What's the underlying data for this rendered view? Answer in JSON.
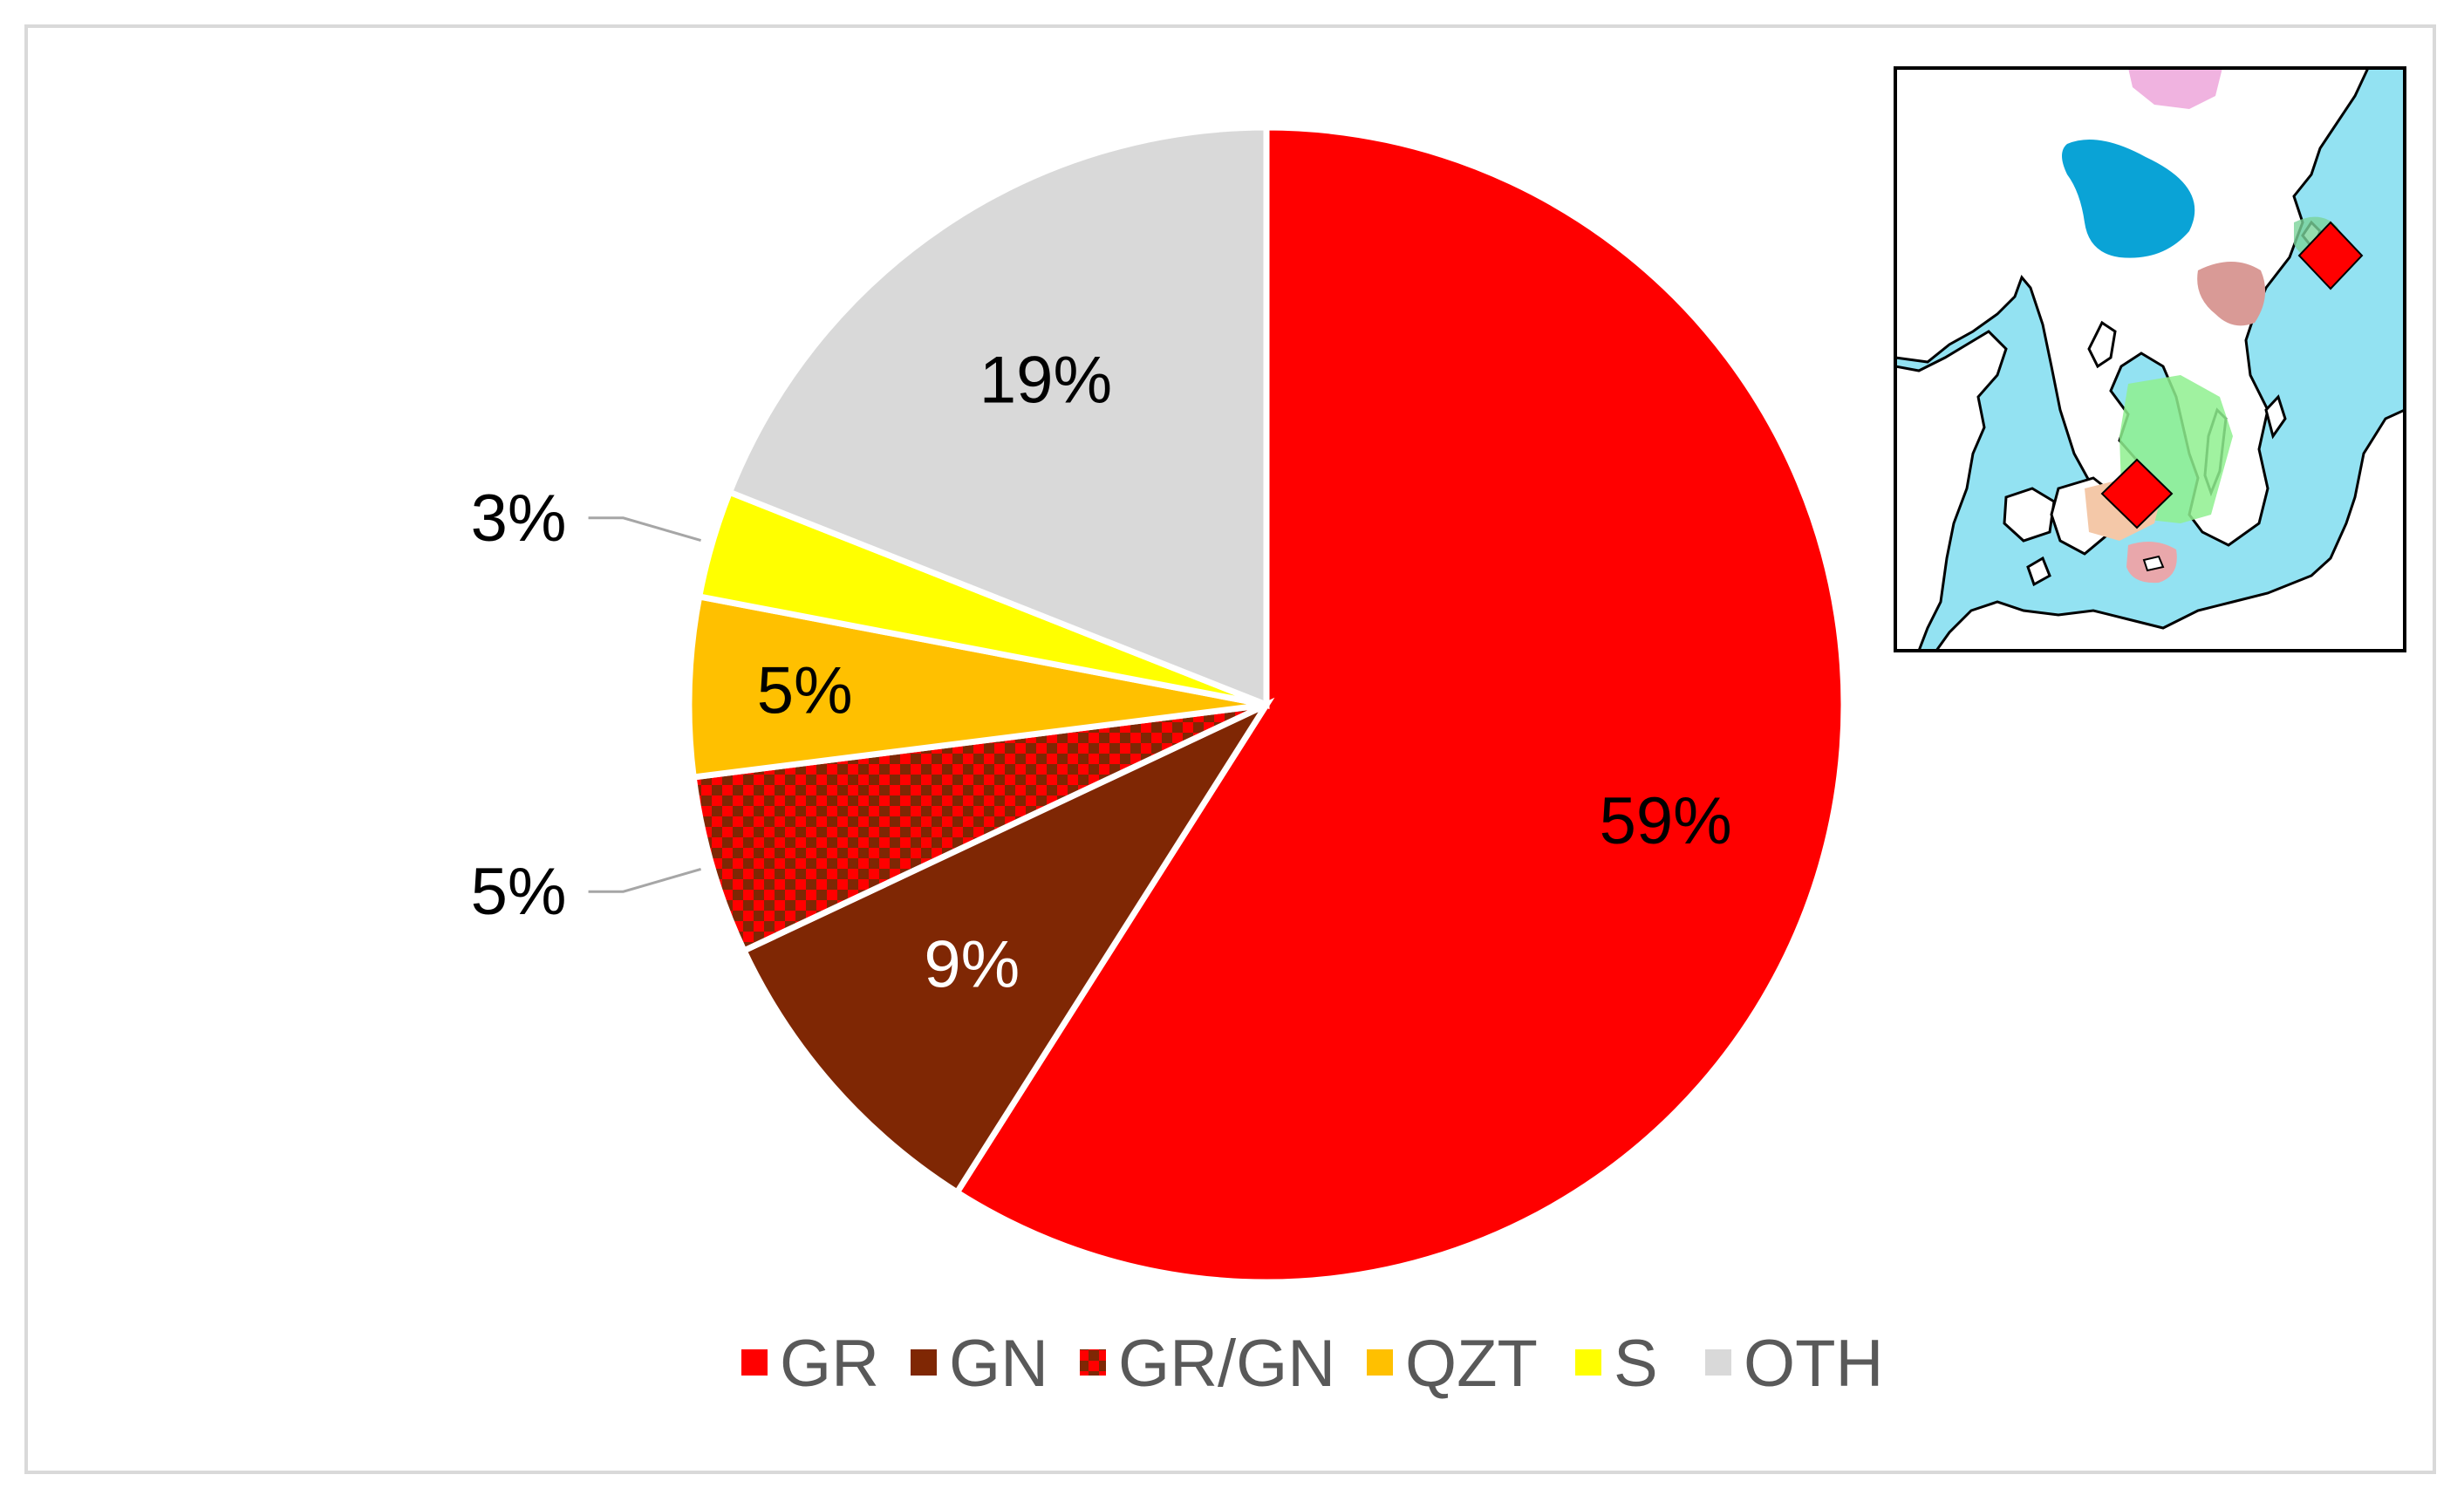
{
  "chart_data": {
    "type": "pie",
    "start": "12 o'clock",
    "direction": "clockwise",
    "categories": [
      "GR",
      "GN",
      "GR/GN",
      "QZT",
      "S",
      "OTH"
    ],
    "values": [
      59,
      9,
      5,
      5,
      3,
      19
    ],
    "labels": [
      "59%",
      "9%",
      "5%",
      "5%",
      "3%",
      "19%"
    ],
    "colors": [
      "#ff0000",
      "#7f2704",
      "checkered-red-brown",
      "#ffc000",
      "#ffff00",
      "#d9d9d9"
    ],
    "legend_position": "bottom"
  },
  "inset_map": {
    "description_icons": [
      "red-diamond-marker",
      "red-diamond-marker"
    ],
    "colors": {
      "sea": "#93e2f2",
      "land": "#ffffff",
      "outline": "#000000",
      "marker": "#ff0000"
    }
  }
}
